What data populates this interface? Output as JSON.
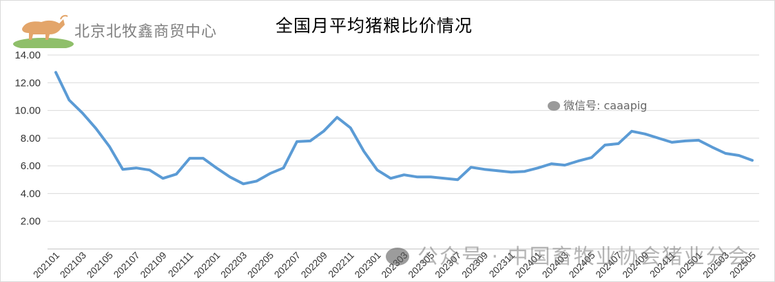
{
  "header": {
    "org_name": "北京北牧鑫商贸中心",
    "title": "全国月平均猪粮比价情况"
  },
  "watermarks": {
    "wechat": "微信号: caaapig",
    "account": "公众号 · 中国畜牧业协会猪业分会"
  },
  "colors": {
    "line": "#5b9bd5",
    "grid": "#d9d9d9",
    "axis": "#bfbfbf"
  },
  "chart_data": {
    "type": "line",
    "title": "全国月平均猪粮比价情况",
    "xlabel": "",
    "ylabel": "",
    "ylim": [
      0,
      14
    ],
    "y_ticks": [
      "2.00",
      "4.00",
      "6.00",
      "8.00",
      "10.00",
      "12.00",
      "14.00"
    ],
    "grid": true,
    "x": [
      "202101",
      "202102",
      "202103",
      "202104",
      "202105",
      "202106",
      "202107",
      "202108",
      "202109",
      "202110",
      "202111",
      "202112",
      "202201",
      "202202",
      "202203",
      "202204",
      "202205",
      "202206",
      "202207",
      "202208",
      "202209",
      "202210",
      "202211",
      "202212",
      "202301",
      "202302",
      "202303",
      "202304",
      "202305",
      "202306",
      "202307",
      "202308",
      "202309",
      "202310",
      "202311",
      "202312",
      "202401",
      "202402",
      "202403",
      "202404",
      "202405",
      "202406",
      "202407",
      "202408",
      "202409",
      "202410",
      "202411",
      "202412",
      "202501",
      "202502",
      "202503",
      "202504",
      "202505"
    ],
    "x_tick_labels": [
      "202101",
      "202103",
      "202105",
      "202107",
      "202109",
      "202111",
      "202201",
      "202203",
      "202205",
      "202207",
      "202209",
      "202211",
      "202301",
      "202303",
      "202305",
      "202307",
      "202309",
      "202311",
      "202401",
      "202403",
      "202405",
      "202407",
      "202409",
      "202411",
      "202501",
      "202503",
      "202505"
    ],
    "series": [
      {
        "values": [
          12.75,
          10.75,
          9.8,
          8.7,
          7.4,
          5.75,
          5.85,
          5.7,
          5.1,
          5.4,
          6.55,
          6.55,
          5.85,
          5.2,
          4.7,
          4.9,
          5.45,
          5.85,
          7.75,
          7.8,
          8.5,
          9.5,
          8.75,
          7.05,
          5.7,
          5.1,
          5.35,
          5.2,
          5.2,
          5.1,
          5.0,
          5.9,
          5.75,
          5.65,
          5.55,
          5.6,
          5.85,
          6.15,
          6.05,
          6.35,
          6.6,
          7.5,
          7.6,
          8.5,
          8.3,
          8.0,
          7.7,
          7.8,
          7.85,
          7.35,
          6.9,
          6.75,
          6.4
        ]
      }
    ]
  }
}
